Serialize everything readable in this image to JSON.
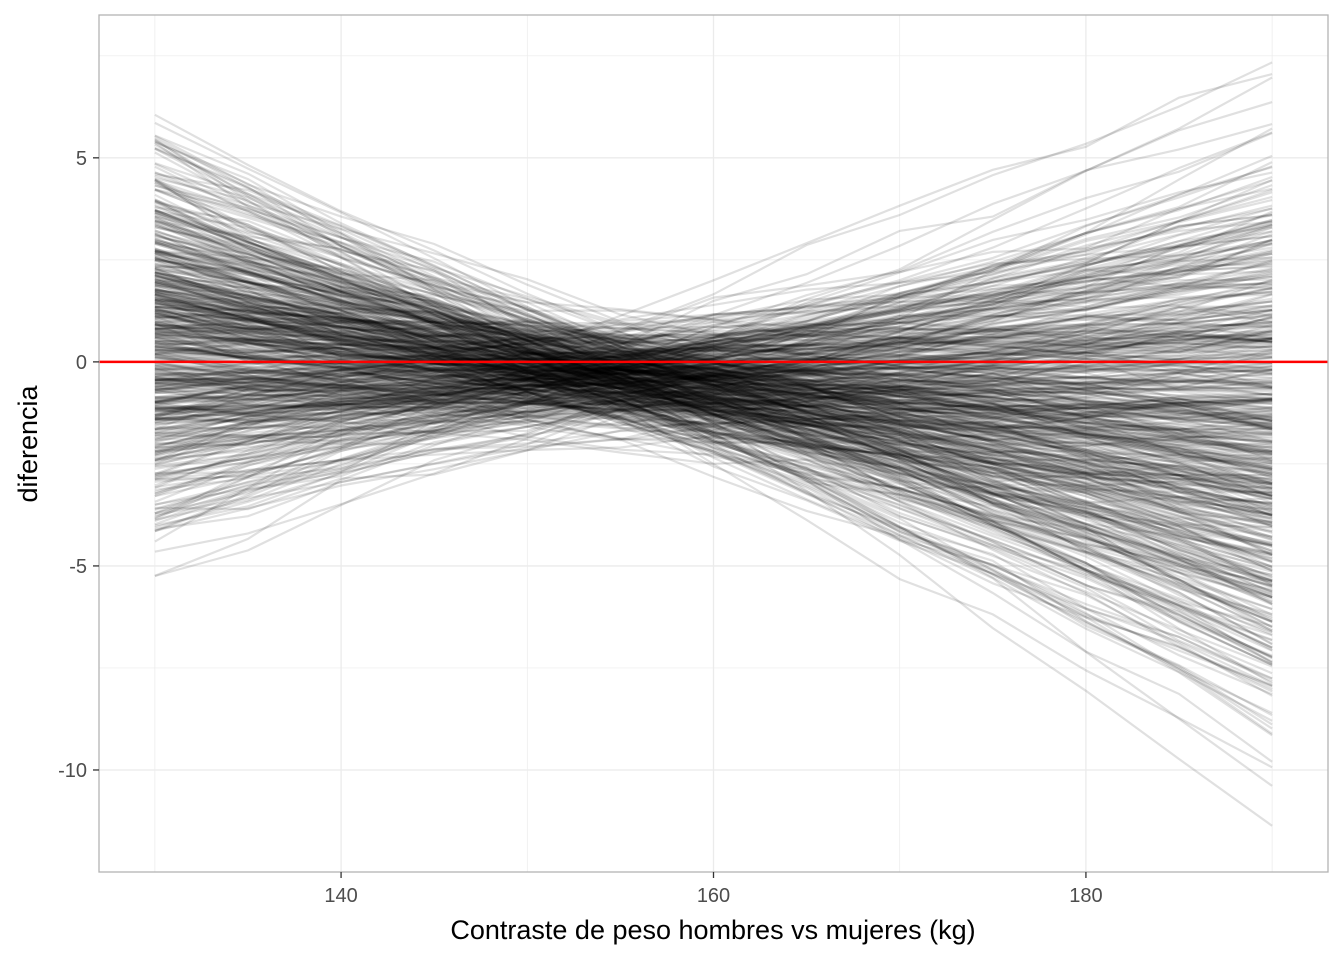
{
  "chart_data": {
    "type": "line",
    "xlabel": "Contraste de peso hombres vs mujeres (kg)",
    "ylabel": "diferencia",
    "xlim": [
      127,
      193
    ],
    "ylim": [
      -12.5,
      8.5
    ],
    "x_ticks": [
      140,
      160,
      180
    ],
    "x_tick_labels": [
      "140",
      "160",
      "180"
    ],
    "y_ticks": [
      -10,
      -5,
      0,
      5
    ],
    "y_tick_labels": [
      "-10",
      "-5",
      "0",
      "5"
    ],
    "grid": true,
    "x": [
      130,
      135,
      140,
      145,
      150,
      155,
      160,
      165,
      170,
      175,
      180,
      185,
      190
    ],
    "reference_line": {
      "y": 0,
      "color": "#ff0000"
    },
    "series_summary": {
      "count": 600,
      "color": "#000000",
      "opacity": 0.12,
      "center_crossing_x": 154,
      "value_at_130": {
        "mean": 0.6,
        "min": -5.7,
        "max": 7.5
      },
      "value_at_154": {
        "mean": -0.3,
        "min": -2.2,
        "max": 1.8
      },
      "value_at_190": {
        "mean": -1.8,
        "min": -11.8,
        "max": 7.2
      }
    }
  }
}
